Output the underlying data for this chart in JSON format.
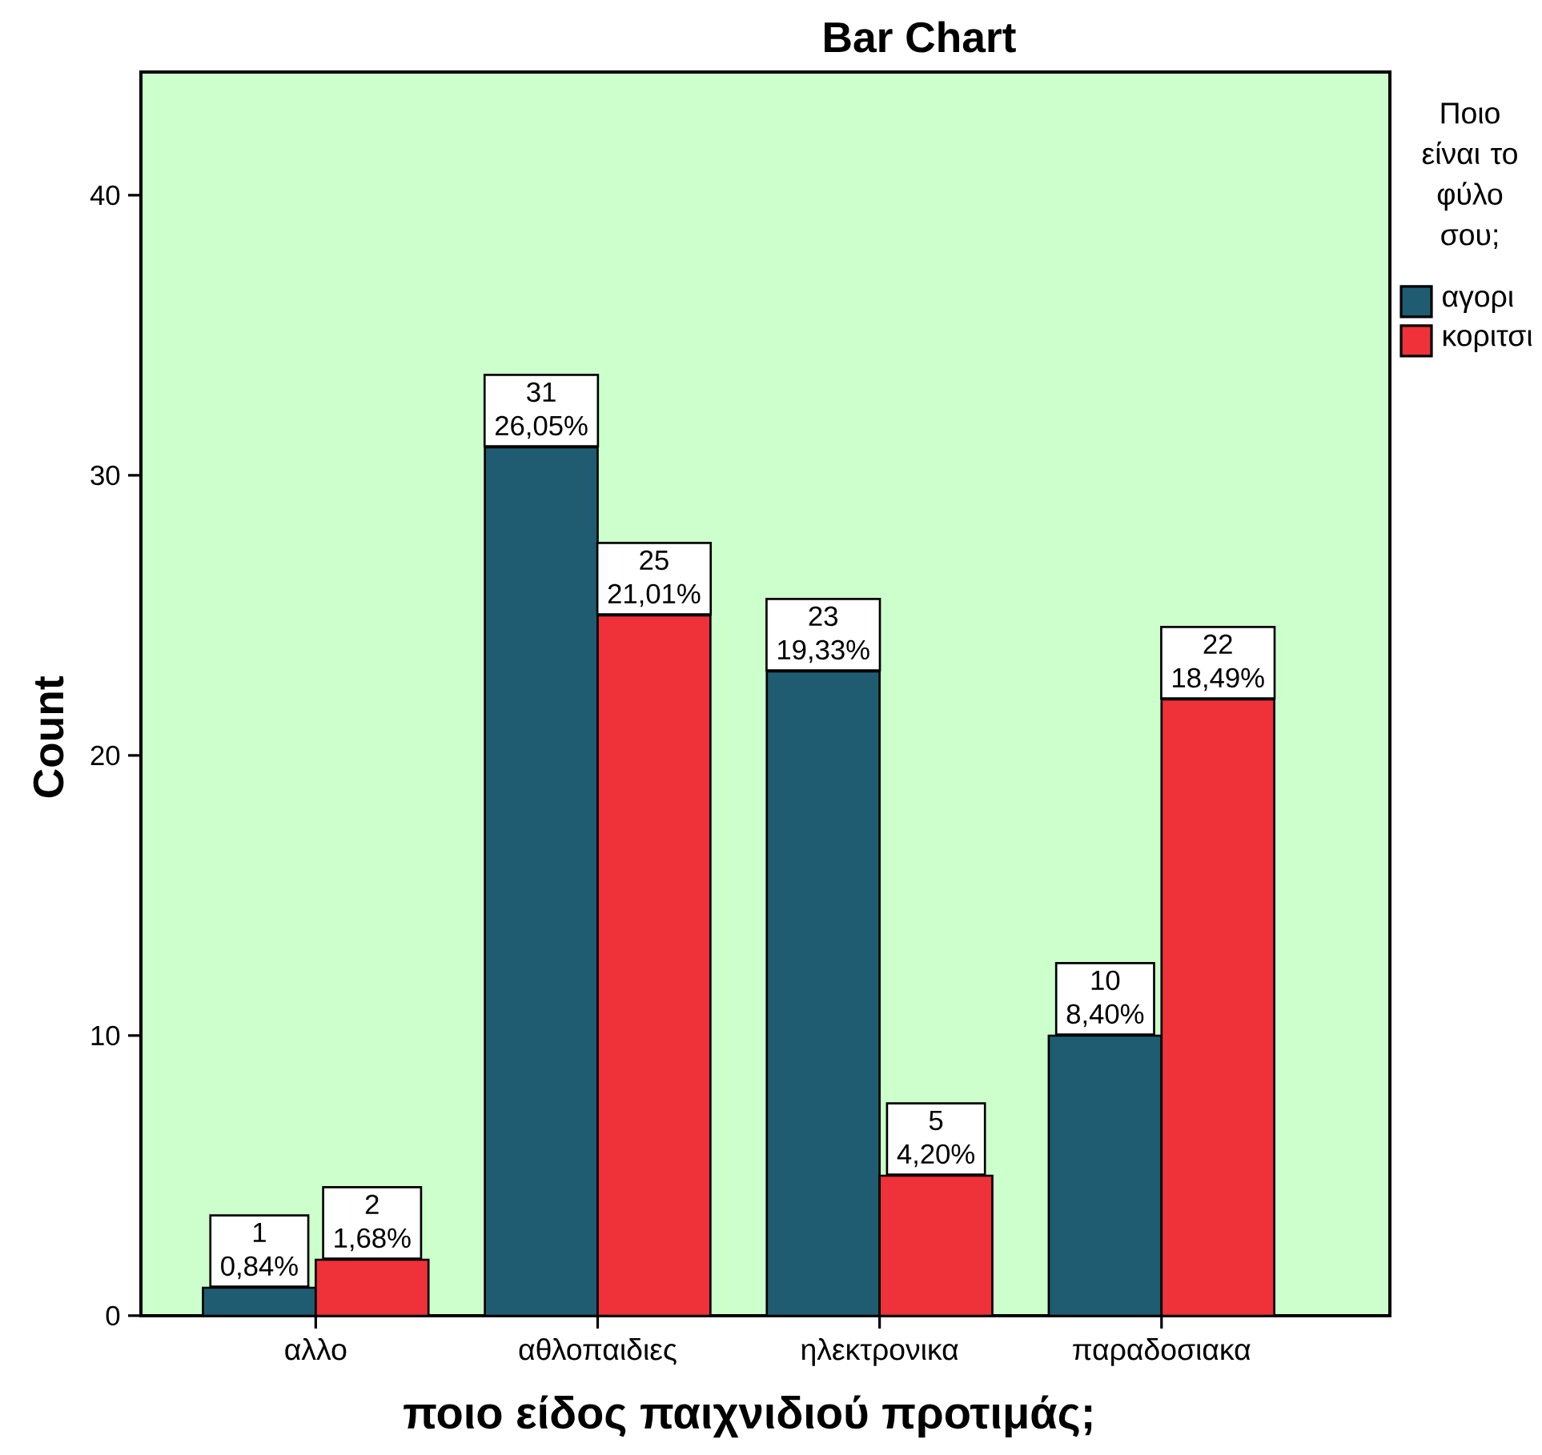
{
  "chart_data": {
    "type": "bar",
    "title": "Bar Chart",
    "xlabel": "ποιο είδος παιχνιδιού προτιμάς;",
    "ylabel": "Count",
    "legend_title": "Ποιο είναι το φύλο σου;",
    "categories": [
      "αλλο",
      "αθλοπαιδιες",
      "ηλεκτρονικα",
      "παραδοσιακα"
    ],
    "series": [
      {
        "name": "αγορι",
        "color": "#1f5c72",
        "values": [
          1,
          31,
          23,
          10
        ],
        "value_labels": [
          "1 0,84%",
          "31 26,05%",
          "23 19,33%",
          "10 8,40%"
        ]
      },
      {
        "name": "κοριτσι",
        "color": "#ef3139",
        "values": [
          2,
          25,
          5,
          22
        ],
        "value_labels": [
          "2 1,68%",
          "25 21,01%",
          "5 4,20%",
          "22 18,49%"
        ]
      }
    ],
    "ylim": [
      0,
      44.4
    ],
    "yticks": [
      0,
      10,
      20,
      30,
      40
    ],
    "legend": "right"
  }
}
